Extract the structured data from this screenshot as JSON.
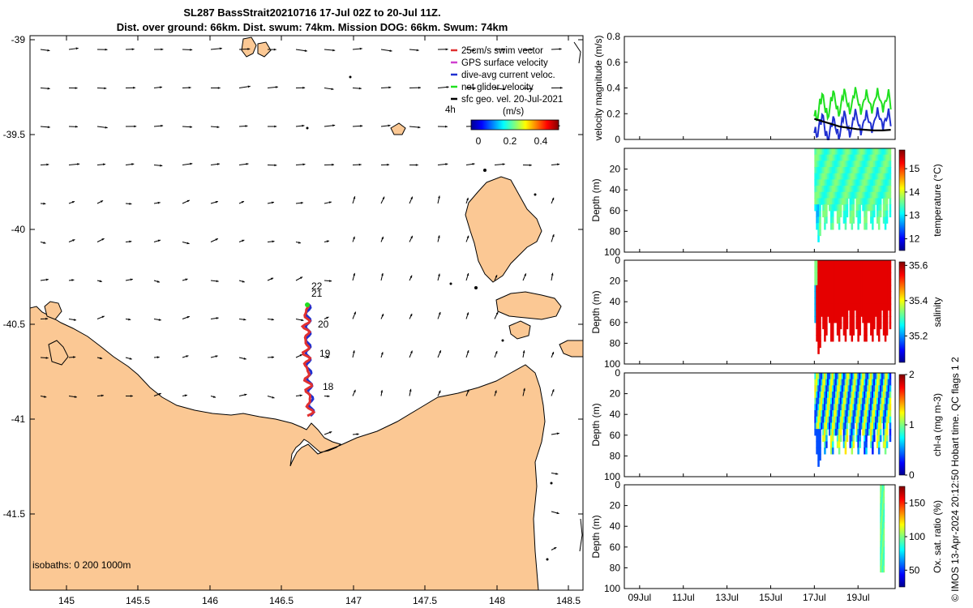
{
  "title": {
    "line1": "SL287 BassStrait20210716 17-Jul 02Z to 20-Jul 11Z.",
    "line2": "Dist. over ground: 66km. Dist. swum: 74km. Mission DOG: 66km. Swum: 74km"
  },
  "map": {
    "lon_ticks": [
      "145",
      "145.5",
      "146",
      "146.5",
      "147",
      "147.5",
      "148",
      "148.5"
    ],
    "lat_ticks": [
      "-39",
      "-39.5",
      "-40",
      "-40.5",
      "-41",
      "-41.5"
    ],
    "legend": [
      {
        "label": "25cm/s swim vector",
        "color": "#e03030"
      },
      {
        "label": "GPS surface velocity",
        "color": "#d040d0"
      },
      {
        "label": "dive-avg current veloc.",
        "color": "#2030d0"
      },
      {
        "label": "net glider velocity",
        "color": "#20e020"
      },
      {
        "label": "sfc geo. vel. 20-Jul-2021",
        "color": "#000000"
      }
    ],
    "legend_extra": "4h",
    "colorbar": {
      "label": "(m/s)",
      "ticks": [
        "0",
        "0.2",
        "0.4"
      ]
    },
    "track_labels": [
      "22",
      "21",
      "20",
      "19",
      "18"
    ],
    "isobaths": "isobaths: 0   200  1000m",
    "land_color": "#fbc894"
  },
  "chart_data": [
    {
      "type": "line",
      "ylabel": "velocity magnitude (m/s)",
      "ylim": [
        0,
        0.8
      ],
      "yticks": [
        "0",
        "0.2",
        "0.4",
        "0.6",
        "0.8"
      ],
      "xlim_days": [
        8.3,
        20.7
      ],
      "series": [
        {
          "name": "net glider velocity",
          "color": "#20e020",
          "values": [
            0.18,
            0.32,
            0.2,
            0.34,
            0.22,
            0.35,
            0.24,
            0.36,
            0.24,
            0.34,
            0.25,
            0.35,
            0.26,
            0.34,
            0.27
          ]
        },
        {
          "name": "dive-avg current veloc.",
          "color": "#2030d0",
          "values": [
            0.05,
            0.16,
            0.02,
            0.14,
            0.04,
            0.18,
            0.06,
            0.19,
            0.08,
            0.18,
            0.1,
            0.2,
            0.12,
            0.19,
            0.14
          ]
        },
        {
          "name": "sfc geo. vel.",
          "color": "#000000",
          "values": [
            0.16,
            0.14,
            0.12,
            0.1,
            0.09,
            0.08,
            0.075,
            0.07,
            0.07,
            0.075
          ]
        }
      ]
    },
    {
      "type": "heatmap",
      "ylabel": "Depth (m)",
      "clabel": "temperature (°C)",
      "ylim": [
        0,
        100
      ],
      "yticks": [
        "20",
        "40",
        "60",
        "80",
        "100"
      ],
      "cticks": [
        "12",
        "13",
        "14",
        "15"
      ],
      "crange": [
        11.5,
        15.8
      ]
    },
    {
      "type": "heatmap",
      "ylabel": "Depth (m)",
      "clabel": "salinity",
      "ylim": [
        0,
        100
      ],
      "yticks": [
        "0",
        "20",
        "40",
        "60",
        "80",
        "100"
      ],
      "cticks": [
        "35.2",
        "35.4",
        "35.6"
      ],
      "crange": [
        35.05,
        35.62
      ]
    },
    {
      "type": "heatmap",
      "ylabel": "Depth (m)",
      "clabel": "chl-a (mg m-3)",
      "ylim": [
        0,
        100
      ],
      "yticks": [
        "0",
        "20",
        "40",
        "60",
        "80",
        "100"
      ],
      "cticks": [
        "0",
        "1",
        "2"
      ],
      "crange": [
        0,
        2
      ]
    },
    {
      "type": "heatmap",
      "ylabel": "Depth (m)",
      "clabel": "Ox. sat. ratio (%)",
      "ylim": [
        0,
        100
      ],
      "yticks": [
        "0",
        "20",
        "40",
        "60",
        "80",
        "100"
      ],
      "cticks": [
        "50",
        "100",
        "150"
      ],
      "crange": [
        25,
        175
      ],
      "xticks": [
        "09Jul",
        "11Jul",
        "13Jul",
        "15Jul",
        "17Jul",
        "19Jul"
      ]
    }
  ],
  "footer": "© IMOS 13-Apr-2024 20:12:50 Hobart time. QC flags 1  2"
}
